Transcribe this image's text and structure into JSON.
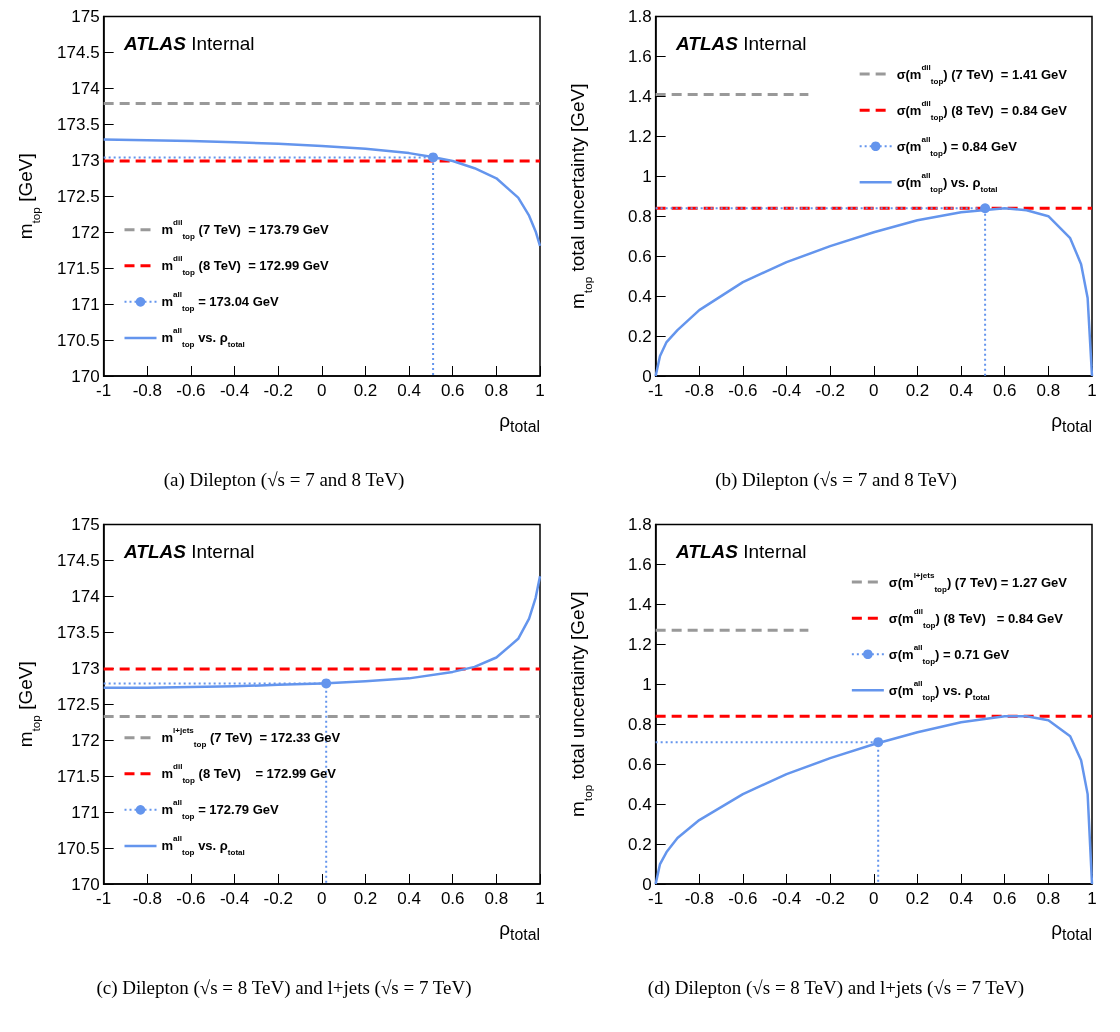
{
  "chart_data": [
    {
      "type": "line",
      "title": "(a) Dilepton (√s = 7 and 8 TeV)",
      "xlabel": "ρ$_{total}$",
      "ylabel": "m$_{top}$ [GeV]",
      "annotations": [
        "ATLAS Internal"
      ],
      "xlim": [
        -1,
        1
      ],
      "xticks": [
        -1,
        -0.8,
        -0.6,
        -0.4,
        -0.2,
        0,
        0.2,
        0.4,
        0.6,
        0.8,
        1
      ],
      "ylim": [
        170,
        175
      ],
      "yticks": [
        170,
        170.5,
        171,
        171.5,
        172,
        172.5,
        173,
        173.5,
        174,
        174.5,
        175
      ],
      "grid": false,
      "legend": "bottom left",
      "series": [
        {
          "name": "m$^{dil}$$_{top}$ (7 TeV)  = 173.79 GeV",
          "color": "#999999",
          "line_style": "dashed",
          "marker": "none",
          "x": [
            -1,
            1
          ],
          "values": [
            173.79,
            173.79
          ]
        },
        {
          "name": "m$^{dil}$$_{top}$ (8 TeV)  = 172.99 GeV",
          "color": "#ff0000",
          "line_style": "dashed",
          "marker": "none",
          "x": [
            -1,
            1
          ],
          "values": [
            172.99,
            172.99
          ]
        },
        {
          "color": "#6495ed",
          "line_style": "dotted",
          "marker": "none",
          "x": [
            -1,
            0.51,
            0.51
          ],
          "values": [
            173.04,
            173.04,
            170
          ]
        },
        {
          "name": "m$^{all}$$_{top}$ = 173.04 GeV",
          "color": "#6495ed",
          "line_style": "dotted",
          "marker": "circle",
          "x": [
            0.51
          ],
          "values": [
            173.04
          ]
        },
        {
          "name": "m$^{all}$$_{top}$ vs. ρ$_{total}$",
          "color": "#6495ed",
          "line_style": "solid",
          "marker": "none",
          "x": [
            -1,
            -0.8,
            -0.6,
            -0.4,
            -0.2,
            0,
            0.2,
            0.4,
            0.5,
            0.6,
            0.7,
            0.8,
            0.9,
            0.95,
            0.98,
            1
          ],
          "values": [
            173.29,
            173.28,
            173.27,
            173.25,
            173.23,
            173.2,
            173.16,
            173.1,
            173.05,
            172.99,
            172.89,
            172.75,
            172.48,
            172.23,
            172.01,
            171.81
          ]
        }
      ]
    },
    {
      "type": "line",
      "title": "(b) Dilepton (√s = 7 and 8 TeV)",
      "xlabel": "ρ$_{total}$",
      "ylabel": "m$_{top}$ total uncertainty [GeV]",
      "annotations": [
        "ATLAS Internal"
      ],
      "xlim": [
        -1,
        1
      ],
      "xticks": [
        -1,
        -0.8,
        -0.6,
        -0.4,
        -0.2,
        0,
        0.2,
        0.4,
        0.6,
        0.8,
        1
      ],
      "ylim": [
        0,
        1.8
      ],
      "yticks": [
        0,
        0.2,
        0.4,
        0.6,
        0.8,
        1,
        1.2,
        1.4,
        1.6,
        1.8
      ],
      "grid": false,
      "legend": "top right",
      "series": [
        {
          "name": "σ(m$^{dil}$$_{top}$) (7 TeV)  = 1.41 GeV",
          "color": "#999999",
          "line_style": "dashed",
          "marker": "none",
          "x": [
            -1,
            -0.3
          ],
          "values": [
            1.41,
            1.41
          ]
        },
        {
          "name": "σ(m$^{dil}$$_{top}$) (8 TeV)  = 0.84 GeV",
          "color": "#ff0000",
          "line_style": "dashed",
          "marker": "none",
          "x": [
            -1,
            1
          ],
          "values": [
            0.84,
            0.84
          ]
        },
        {
          "color": "#6495ed",
          "line_style": "dotted",
          "marker": "none",
          "x": [
            -1,
            0.51,
            0.51
          ],
          "values": [
            0.84,
            0.84,
            0
          ]
        },
        {
          "name": "σ(m$^{all}$$_{top}$) = 0.84 GeV",
          "color": "#6495ed",
          "line_style": "dotted",
          "marker": "circle",
          "x": [
            0.51
          ],
          "values": [
            0.84
          ]
        },
        {
          "name": "σ(m$^{all}$$_{top}$) vs. ρ$_{total}$",
          "color": "#6495ed",
          "line_style": "solid",
          "marker": "none",
          "x": [
            -1,
            -0.98,
            -0.95,
            -0.9,
            -0.8,
            -0.6,
            -0.4,
            -0.2,
            0,
            0.2,
            0.4,
            0.5,
            0.6,
            0.7,
            0.8,
            0.9,
            0.95,
            0.98,
            1
          ],
          "values": [
            0,
            0.1,
            0.17,
            0.23,
            0.33,
            0.47,
            0.57,
            0.65,
            0.72,
            0.78,
            0.82,
            0.83,
            0.84,
            0.83,
            0.8,
            0.69,
            0.56,
            0.39,
            0
          ]
        }
      ]
    },
    {
      "type": "line",
      "title": "(c) Dilepton (√s = 8 TeV) and l+jets (√s = 7 TeV)",
      "xlabel": "ρ$_{total}$",
      "ylabel": "m$_{top}$ [GeV]",
      "annotations": [
        "ATLAS Internal"
      ],
      "xlim": [
        -1,
        1
      ],
      "xticks": [
        -1,
        -0.8,
        -0.6,
        -0.4,
        -0.2,
        0,
        0.2,
        0.4,
        0.6,
        0.8,
        1
      ],
      "ylim": [
        170,
        175
      ],
      "yticks": [
        170,
        170.5,
        171,
        171.5,
        172,
        172.5,
        173,
        173.5,
        174,
        174.5,
        175
      ],
      "grid": false,
      "legend": "bottom left",
      "series": [
        {
          "name": "m$^{l+jets}$$_{top}$ (7 TeV)  = 172.33 GeV",
          "color": "#999999",
          "line_style": "dashed",
          "marker": "none",
          "x": [
            -1,
            1
          ],
          "values": [
            172.33,
            172.33
          ]
        },
        {
          "name": "m$^{dil}$$_{top}$ (8 TeV)    = 172.99 GeV",
          "color": "#ff0000",
          "line_style": "dashed",
          "marker": "none",
          "x": [
            -1,
            1
          ],
          "values": [
            172.99,
            172.99
          ]
        },
        {
          "color": "#6495ed",
          "line_style": "dotted",
          "marker": "none",
          "x": [
            -1,
            0.02,
            0.02
          ],
          "values": [
            172.79,
            172.79,
            170
          ]
        },
        {
          "name": "m$^{all}$$_{top}$ = 172.79 GeV",
          "color": "#6495ed",
          "line_style": "dotted",
          "marker": "circle",
          "x": [
            0.02
          ],
          "values": [
            172.79
          ]
        },
        {
          "name": "m$^{all}$$_{top}$ vs. ρ$_{total}$",
          "color": "#6495ed",
          "line_style": "solid",
          "marker": "none",
          "x": [
            -1,
            -0.8,
            -0.6,
            -0.4,
            -0.2,
            0,
            0.2,
            0.4,
            0.6,
            0.7,
            0.8,
            0.9,
            0.95,
            0.98,
            1
          ],
          "values": [
            172.73,
            172.73,
            172.74,
            172.75,
            172.77,
            172.79,
            172.82,
            172.86,
            172.95,
            173.02,
            173.15,
            173.41,
            173.69,
            173.98,
            174.28
          ]
        }
      ]
    },
    {
      "type": "line",
      "title": "(d) Dilepton (√s = 8 TeV) and l+jets (√s = 7 TeV)",
      "xlabel": "ρ$_{total}$",
      "ylabel": "m$_{top}$ total uncertainty [GeV]",
      "annotations": [
        "ATLAS Internal"
      ],
      "xlim": [
        -1,
        1
      ],
      "xticks": [
        -1,
        -0.8,
        -0.6,
        -0.4,
        -0.2,
        0,
        0.2,
        0.4,
        0.6,
        0.8,
        1
      ],
      "ylim": [
        0,
        1.8
      ],
      "yticks": [
        0,
        0.2,
        0.4,
        0.6,
        0.8,
        1,
        1.2,
        1.4,
        1.6,
        1.8
      ],
      "grid": false,
      "legend": "top right",
      "series": [
        {
          "name": "σ(m$^{l+jets}$$_{top}$) (7 TeV) = 1.27 GeV",
          "color": "#999999",
          "line_style": "dashed",
          "marker": "none",
          "x": [
            -1,
            -0.3
          ],
          "values": [
            1.27,
            1.27
          ]
        },
        {
          "name": "σ(m$^{dil}$$_{top}$) (8 TeV)   = 0.84 GeV",
          "color": "#ff0000",
          "line_style": "dashed",
          "marker": "none",
          "x": [
            -1,
            1
          ],
          "values": [
            0.84,
            0.84
          ]
        },
        {
          "color": "#6495ed",
          "line_style": "dotted",
          "marker": "none",
          "x": [
            -1,
            0.02,
            0.02
          ],
          "values": [
            0.71,
            0.71,
            0
          ]
        },
        {
          "name": "σ(m$^{all}$$_{top}$) = 0.71 GeV",
          "color": "#6495ed",
          "line_style": "dotted",
          "marker": "circle",
          "x": [
            0.02
          ],
          "values": [
            0.71
          ]
        },
        {
          "name": "σ(m$^{all}$$_{top}$) vs. ρ$_{total}$",
          "color": "#6495ed",
          "line_style": "solid",
          "marker": "none",
          "x": [
            -1,
            -0.98,
            -0.95,
            -0.9,
            -0.8,
            -0.6,
            -0.4,
            -0.2,
            0,
            0.2,
            0.4,
            0.6,
            0.7,
            0.8,
            0.9,
            0.95,
            0.98,
            1
          ],
          "values": [
            0,
            0.1,
            0.16,
            0.23,
            0.32,
            0.45,
            0.55,
            0.63,
            0.7,
            0.76,
            0.81,
            0.84,
            0.84,
            0.82,
            0.74,
            0.62,
            0.45,
            0
          ]
        }
      ]
    }
  ]
}
